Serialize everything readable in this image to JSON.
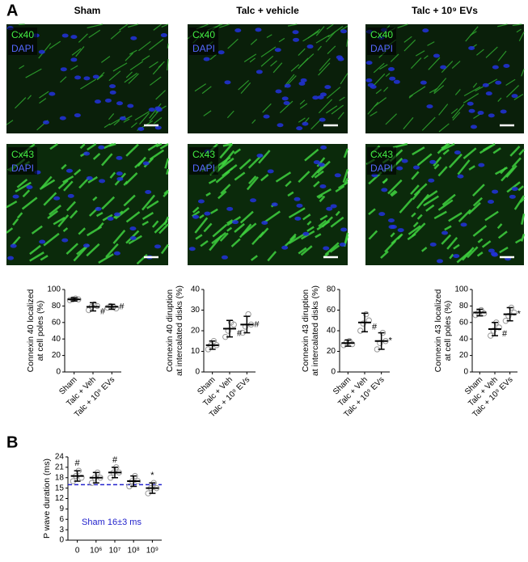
{
  "panel_labels": [
    "A",
    "B"
  ],
  "columns": [
    "Sham",
    "Talc + vehicle",
    "Talc + 10⁹ EVs"
  ],
  "rows": [
    [
      "Cx40",
      "DAPI"
    ],
    [
      "Cx43",
      "DAPI"
    ]
  ],
  "chart_data": [
    {
      "type": "dotplot",
      "ylabel": [
        "Connexin 40 localized",
        "at cell poles (%)"
      ],
      "categories": [
        "Sham",
        "Talc + Veh",
        "Talc + 10⁹ EVs"
      ],
      "means": [
        88,
        79,
        79
      ],
      "sd": [
        2,
        5,
        3
      ],
      "points": [
        [
          87,
          88,
          89,
          88
        ],
        [
          75,
          79,
          82,
          80
        ],
        [
          78,
          80,
          79,
          77
        ]
      ],
      "annotations": [
        {
          "category": 1,
          "text": "#"
        },
        {
          "category": 2,
          "text": "#"
        }
      ],
      "ylim": [
        0,
        100
      ],
      "yticks": [
        0,
        20,
        40,
        60,
        80,
        100
      ],
      "color": "#000000"
    },
    {
      "type": "dotplot",
      "ylabel": [
        "Connexin 40 diruption",
        "at intercalated disks (%)"
      ],
      "categories": [
        "Sham",
        "Talc + Veh",
        "Talc + 10⁹ EVs"
      ],
      "means": [
        13,
        21,
        23
      ],
      "sd": [
        2,
        4,
        4
      ],
      "points": [
        [
          11,
          13,
          15,
          13
        ],
        [
          17,
          20,
          24,
          23
        ],
        [
          19,
          22,
          28,
          23
        ]
      ],
      "annotations": [
        {
          "category": 1,
          "text": "#"
        },
        {
          "category": 2,
          "text": "#"
        }
      ],
      "ylim": [
        0,
        40
      ],
      "yticks": [
        0,
        10,
        20,
        30,
        40
      ],
      "color": "#000000"
    },
    {
      "type": "dotplot",
      "ylabel": [
        "Connexin 43 diruption",
        "at intercalated disks (%)"
      ],
      "categories": [
        "Sham",
        "Talc + Veh",
        "Talc + 10⁹ EVs"
      ],
      "means": [
        28,
        48,
        30
      ],
      "sd": [
        3,
        9,
        8
      ],
      "points": [
        [
          26,
          29,
          30,
          27
        ],
        [
          40,
          47,
          56,
          50
        ],
        [
          22,
          28,
          38,
          30
        ]
      ],
      "annotations": [
        {
          "category": 1,
          "text": "#"
        },
        {
          "category": 2,
          "text": "*"
        }
      ],
      "ylim": [
        0,
        80
      ],
      "yticks": [
        0,
        20,
        40,
        60,
        80
      ],
      "color": "#000000"
    },
    {
      "type": "dotplot",
      "ylabel": [
        "Connexin 43 localized",
        "at cell poles (%)"
      ],
      "categories": [
        "Sham",
        "Talc + Veh",
        "Talc + 10⁹ EVs"
      ],
      "means": [
        72,
        52,
        70
      ],
      "sd": [
        4,
        8,
        8
      ],
      "points": [
        [
          69,
          72,
          75,
          71
        ],
        [
          44,
          50,
          60,
          54
        ],
        [
          62,
          68,
          78,
          72
        ]
      ],
      "annotations": [
        {
          "category": 1,
          "text": "#"
        },
        {
          "category": 2,
          "text": "*"
        }
      ],
      "ylim": [
        0,
        100
      ],
      "yticks": [
        0,
        20,
        40,
        60,
        80,
        100
      ],
      "color": "#000000"
    },
    {
      "type": "dotplot",
      "ylabel": [
        "P wave duration (ms)"
      ],
      "categories": [
        "0",
        "10⁶",
        "10⁷",
        "10⁸",
        "10⁹"
      ],
      "means": [
        18.5,
        18,
        19.5,
        17,
        15
      ],
      "sd": [
        1.5,
        1.5,
        1.5,
        1.5,
        1.5
      ],
      "points": [
        [
          17,
          18.5,
          20,
          18
        ],
        [
          16.5,
          18,
          19.5,
          18
        ],
        [
          18,
          19.5,
          21,
          19.5
        ],
        [
          15.5,
          17,
          18.5,
          17
        ],
        [
          13.5,
          15,
          16.5,
          15
        ]
      ],
      "annotations": [
        {
          "category": 0,
          "text": "#"
        },
        {
          "category": 2,
          "text": "#"
        },
        {
          "category": 4,
          "text": "*"
        }
      ],
      "reference": {
        "value": 16,
        "label": "Sham 16±3 ms",
        "color": "#2222cc"
      },
      "ylim": [
        0,
        24
      ],
      "yticks": [
        0,
        3,
        6,
        9,
        12,
        15,
        18,
        21,
        24
      ],
      "color": "#000000"
    }
  ]
}
